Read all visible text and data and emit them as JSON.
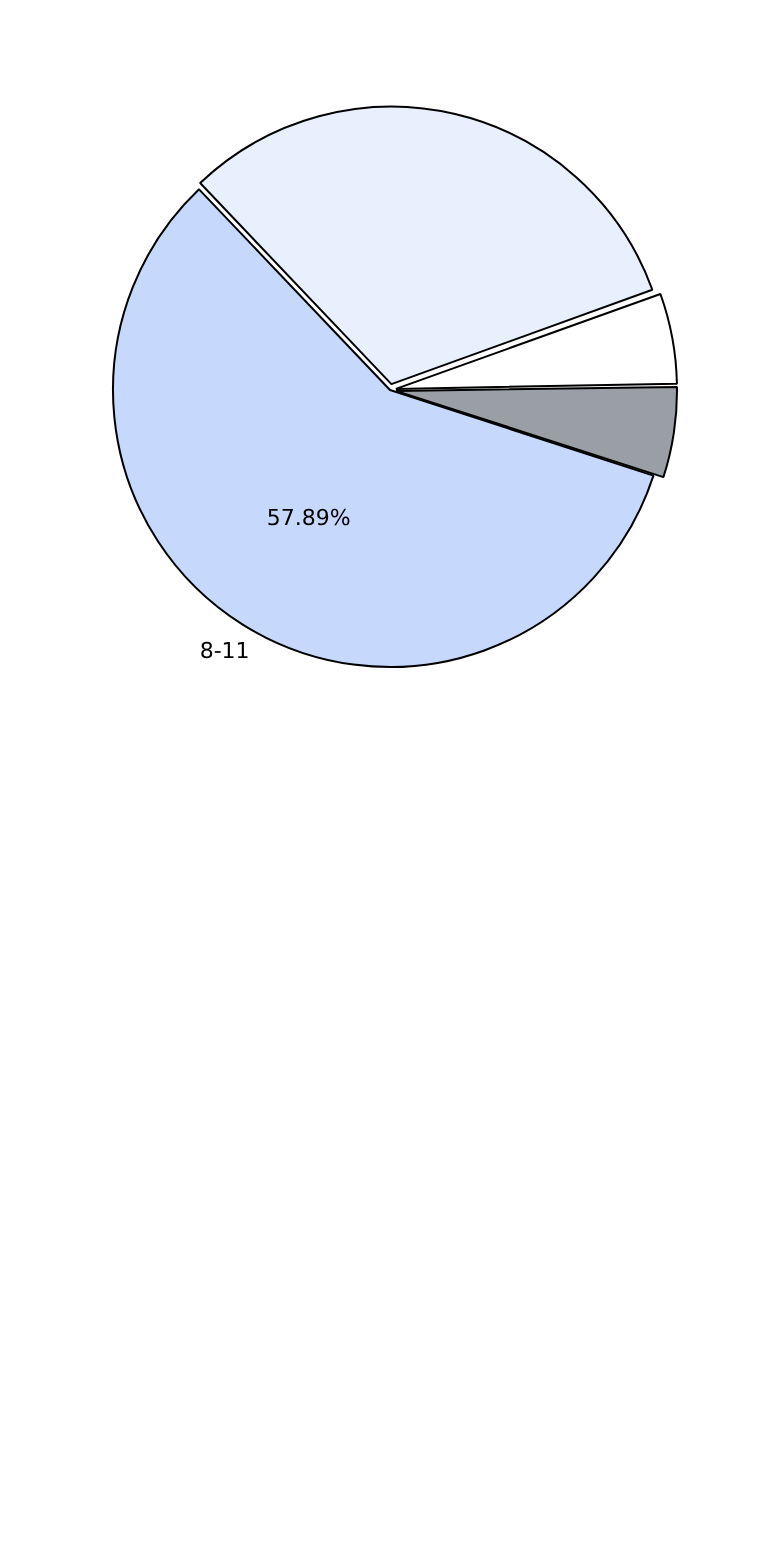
{
  "chart_data": {
    "type": "pie",
    "categories": [
      "8-11",
      null,
      null,
      null
    ],
    "values": [
      57.89,
      31.58,
      5.26,
      5.26
    ],
    "colors": [
      "#c6d9fd",
      "#e8f0fe",
      "#ffffff",
      "#9a9fa6"
    ],
    "value_labels": [
      "57.89%",
      null,
      null,
      null
    ],
    "legend": false
  }
}
